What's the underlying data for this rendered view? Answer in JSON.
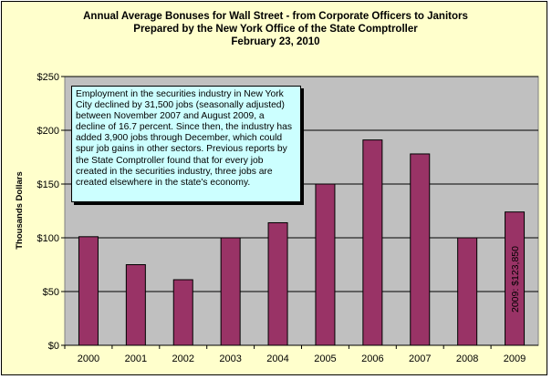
{
  "chart_data": {
    "type": "bar",
    "title": [
      "Annual Average Bonuses for Wall Street - from Corporate Officers to Janitors",
      "Prepared by the New York Office of the State Comptroller",
      "February 23, 2010"
    ],
    "xlabel": "",
    "ylabel": "Thousands Dollars",
    "categories": [
      "2000",
      "2001",
      "2002",
      "2003",
      "2004",
      "2005",
      "2006",
      "2007",
      "2008",
      "2009"
    ],
    "values": [
      101,
      75,
      61,
      100,
      114,
      150,
      191,
      178,
      100,
      124
    ],
    "ylim": [
      0,
      250
    ],
    "yticks": [
      0,
      50,
      100,
      150,
      200,
      250
    ],
    "ytick_labels": [
      "$0",
      "$50",
      "$100",
      "$150",
      "$200",
      "$250"
    ],
    "grid": true,
    "legend": "none",
    "annotation": "Employment in the securities industry in New York City declined by 31,500 jobs (seasonally adjusted) between November 2007 and August 2009, a decline of 16.7 percent. Since then, the industry has added 3,900 jobs through December, which could spur job gains in other sectors. Previous reports by the State Comptroller found that for every job created in the securities industry, three jobs are created elsewhere in the state's economy.",
    "bar_annotation": {
      "category": "2009",
      "text": "2009: $123,850"
    }
  },
  "colors": {
    "bar": "#993366",
    "plot_area": "#c0c0c0",
    "frame": "#ffffcc",
    "annotation_box": "#ccffff"
  }
}
